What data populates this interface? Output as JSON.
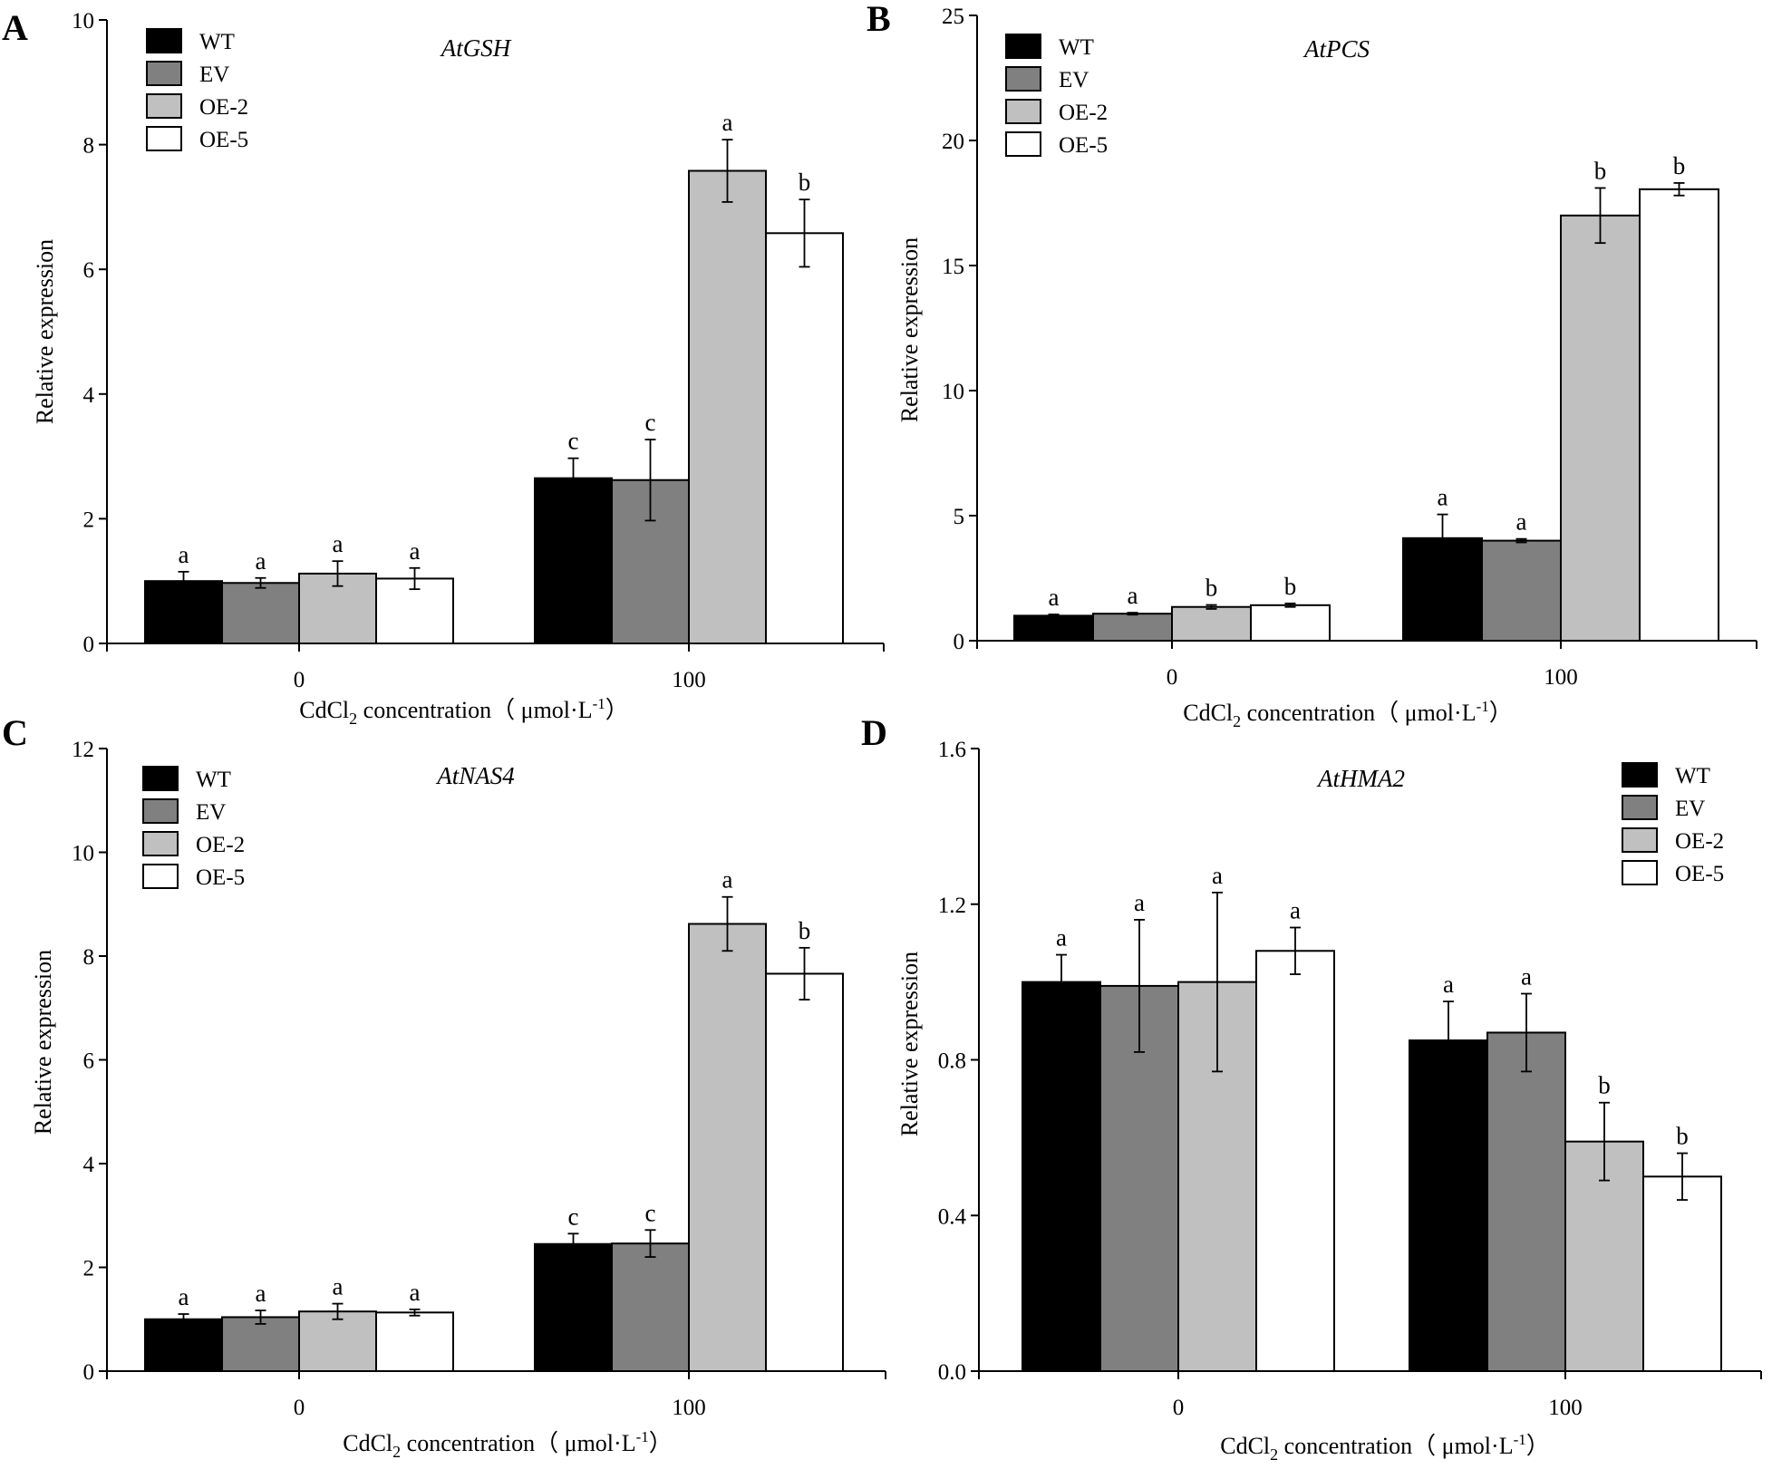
{
  "figure": {
    "series_colors": {
      "WT": "#000000",
      "EV": "#808080",
      "OE-2": "#c0c0c0",
      "OE-5": "#ffffff"
    },
    "x_label_parts": {
      "prefix": "CdCl",
      "sub": "2",
      "mid": " concentration（ μmol·L",
      "sup": "-1",
      "suffix": "）"
    }
  },
  "chart_data": [
    {
      "panel": "A",
      "type": "bar",
      "title": "AtGSH",
      "xlabel": "CdCl2 concentration（ μmol·L-1）",
      "ylabel": "Relative expression",
      "categories": [
        "0",
        "100"
      ],
      "ylim": [
        0,
        10
      ],
      "yticks": [
        "0",
        "2",
        "4",
        "6",
        "8",
        "10"
      ],
      "legend_position": "top-left",
      "series": [
        {
          "name": "WT",
          "values": [
            1.0,
            2.65
          ],
          "errors": [
            0.15,
            0.32
          ],
          "sig": [
            "a",
            "c"
          ]
        },
        {
          "name": "EV",
          "values": [
            0.97,
            2.62
          ],
          "errors": [
            0.08,
            0.65
          ],
          "sig": [
            "a",
            "c"
          ]
        },
        {
          "name": "OE-2",
          "values": [
            1.12,
            7.58
          ],
          "errors": [
            0.2,
            0.5
          ],
          "sig": [
            "a",
            "a"
          ]
        },
        {
          "name": "OE-5",
          "values": [
            1.04,
            6.58
          ],
          "errors": [
            0.17,
            0.54
          ],
          "sig": [
            "a",
            "b"
          ]
        }
      ]
    },
    {
      "panel": "B",
      "type": "bar",
      "title": "AtPCS",
      "xlabel": "CdCl2 concentration（ μmol·L-1）",
      "ylabel": "Relative expression",
      "categories": [
        "0",
        "100"
      ],
      "ylim": [
        0,
        25
      ],
      "yticks": [
        "0",
        "5",
        "10",
        "15",
        "20",
        "25"
      ],
      "legend_position": "top-left",
      "series": [
        {
          "name": "WT",
          "values": [
            1.0,
            4.1
          ],
          "errors": [
            0.05,
            0.95
          ],
          "sig": [
            "a",
            "a"
          ]
        },
        {
          "name": "EV",
          "values": [
            1.08,
            4.0
          ],
          "errors": [
            0.04,
            0.07
          ],
          "sig": [
            "a",
            "a"
          ]
        },
        {
          "name": "OE-2",
          "values": [
            1.35,
            17.0
          ],
          "errors": [
            0.08,
            1.1
          ],
          "sig": [
            "b",
            "b"
          ]
        },
        {
          "name": "OE-5",
          "values": [
            1.42,
            18.05
          ],
          "errors": [
            0.07,
            0.25
          ],
          "sig": [
            "b",
            "b"
          ]
        }
      ]
    },
    {
      "panel": "C",
      "type": "bar",
      "title": "AtNAS4",
      "xlabel": "CdCl2 concentration（ μmol·L-1）",
      "ylabel": "Relative expression",
      "categories": [
        "0",
        "100"
      ],
      "ylim": [
        0,
        12
      ],
      "yticks": [
        "0",
        "2",
        "4",
        "6",
        "8",
        "10",
        "12"
      ],
      "legend_position": "top-left",
      "series": [
        {
          "name": "WT",
          "values": [
            1.0,
            2.45
          ],
          "errors": [
            0.1,
            0.2
          ],
          "sig": [
            "a",
            "c"
          ]
        },
        {
          "name": "EV",
          "values": [
            1.04,
            2.46
          ],
          "errors": [
            0.13,
            0.26
          ],
          "sig": [
            "a",
            "c"
          ]
        },
        {
          "name": "OE-2",
          "values": [
            1.15,
            8.62
          ],
          "errors": [
            0.15,
            0.52
          ],
          "sig": [
            "a",
            "a"
          ]
        },
        {
          "name": "OE-5",
          "values": [
            1.13,
            7.66
          ],
          "errors": [
            0.06,
            0.5
          ],
          "sig": [
            "a",
            "b"
          ]
        }
      ]
    },
    {
      "panel": "D",
      "type": "bar",
      "title": "AtHMA2",
      "xlabel": "CdCl2 concentration（ μmol·L-1）",
      "ylabel": "Relative expression",
      "categories": [
        "0",
        "100"
      ],
      "ylim": [
        0,
        1.6
      ],
      "yticks": [
        "0.0",
        "0.4",
        "0.8",
        "1.2",
        "1.6"
      ],
      "legend_position": "top-right",
      "series": [
        {
          "name": "WT",
          "values": [
            1.0,
            0.85
          ],
          "errors": [
            0.07,
            0.1
          ],
          "sig": [
            "a",
            "a"
          ]
        },
        {
          "name": "EV",
          "values": [
            0.99,
            0.87
          ],
          "errors": [
            0.17,
            0.1
          ],
          "sig": [
            "a",
            "a"
          ]
        },
        {
          "name": "OE-2",
          "values": [
            1.0,
            0.59
          ],
          "errors": [
            0.23,
            0.1
          ],
          "sig": [
            "a",
            "b"
          ]
        },
        {
          "name": "OE-5",
          "values": [
            1.08,
            0.5
          ],
          "errors": [
            0.06,
            0.06
          ],
          "sig": [
            "a",
            "b"
          ]
        }
      ]
    }
  ]
}
